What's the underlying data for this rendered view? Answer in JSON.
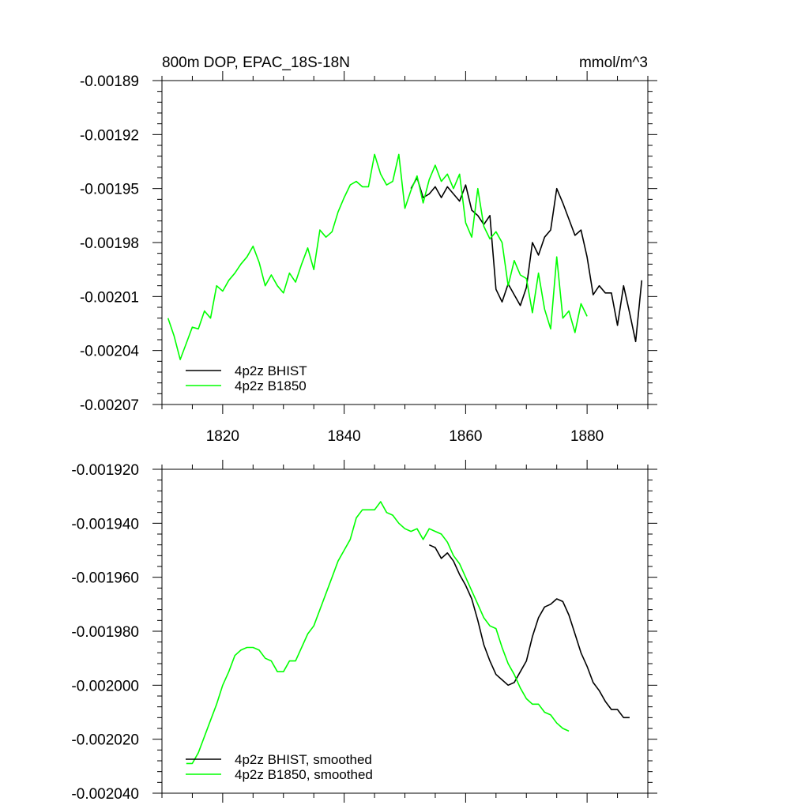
{
  "chart_data": [
    {
      "id": "top",
      "type": "line",
      "title_left": "800m DOP, EPAC_18S-18N",
      "title_right": "mmol/m^3",
      "xlabel": "",
      "ylabel": "",
      "xlim": [
        1810,
        1890
      ],
      "ylim": [
        -0.00207,
        -0.00189
      ],
      "xticks": [
        1820,
        1840,
        1860,
        1880
      ],
      "xtick_labels": [
        "1820",
        "1840",
        "1860",
        "1880"
      ],
      "yticks": [
        -0.00207,
        -0.00204,
        -0.00201,
        -0.00198,
        -0.00195,
        -0.00192,
        -0.00189
      ],
      "ytick_labels": [
        "-0.00207",
        "-0.00204",
        "-0.00201",
        "-0.00198",
        "-0.00195",
        "-0.00192",
        "-0.00189"
      ],
      "legend_position": "bottom-left",
      "series": [
        {
          "name": "4p2z BHIST",
          "color": "#000000",
          "x": [
            1851,
            1852,
            1853,
            1854,
            1855,
            1856,
            1857,
            1858,
            1859,
            1860,
            1861,
            1862,
            1863,
            1864,
            1865,
            1866,
            1867,
            1868,
            1869,
            1870,
            1871,
            1872,
            1873,
            1874,
            1875,
            1876,
            1877,
            1878,
            1879,
            1880,
            1881,
            1882,
            1883,
            1884,
            1885,
            1886,
            1887,
            1888,
            1889
          ],
          "y": [
            -0.00195,
            -0.001944,
            -0.001955,
            -0.001953,
            -0.001949,
            -0.001955,
            -0.001949,
            -0.001953,
            -0.001957,
            -0.001948,
            -0.001962,
            -0.001965,
            -0.00197,
            -0.001965,
            -0.002006,
            -0.002013,
            -0.002003,
            -0.002009,
            -0.002015,
            -0.002005,
            -0.00198,
            -0.001987,
            -0.001977,
            -0.001973,
            -0.00195,
            -0.001958,
            -0.001967,
            -0.001976,
            -0.001973,
            -0.001988,
            -0.002009,
            -0.002004,
            -0.002008,
            -0.002008,
            -0.002026,
            -0.002004,
            -0.002019,
            -0.002035,
            -0.002001
          ]
        },
        {
          "name": "4p2z B1850",
          "color": "#00ff00",
          "x": [
            1811,
            1812,
            1813,
            1814,
            1815,
            1816,
            1817,
            1818,
            1819,
            1820,
            1821,
            1822,
            1823,
            1824,
            1825,
            1826,
            1827,
            1828,
            1829,
            1830,
            1831,
            1832,
            1833,
            1834,
            1835,
            1836,
            1837,
            1838,
            1839,
            1840,
            1841,
            1842,
            1843,
            1844,
            1845,
            1846,
            1847,
            1848,
            1849,
            1850,
            1851,
            1852,
            1853,
            1854,
            1855,
            1856,
            1857,
            1858,
            1859,
            1860,
            1861,
            1862,
            1863,
            1864,
            1865,
            1866,
            1867,
            1868,
            1869,
            1870,
            1871,
            1872,
            1873,
            1874,
            1875,
            1876,
            1877,
            1878,
            1879,
            1880
          ],
          "y": [
            -0.002022,
            -0.002032,
            -0.002045,
            -0.002036,
            -0.002027,
            -0.002028,
            -0.002018,
            -0.002022,
            -0.002004,
            -0.002007,
            -0.002001,
            -0.001997,
            -0.001992,
            -0.001988,
            -0.001982,
            -0.001991,
            -0.002004,
            -0.001998,
            -0.002004,
            -0.002008,
            -0.001997,
            -0.002002,
            -0.001992,
            -0.001983,
            -0.001995,
            -0.001973,
            -0.001977,
            -0.001974,
            -0.001963,
            -0.001955,
            -0.001948,
            -0.001946,
            -0.001949,
            -0.001949,
            -0.001931,
            -0.001942,
            -0.001948,
            -0.001946,
            -0.001931,
            -0.001961,
            -0.001951,
            -0.001943,
            -0.001958,
            -0.001945,
            -0.001937,
            -0.001946,
            -0.001942,
            -0.00195,
            -0.001942,
            -0.001969,
            -0.001977,
            -0.00195,
            -0.001971,
            -0.001978,
            -0.001974,
            -0.00198,
            -0.002004,
            -0.00199,
            -0.001998,
            -0.002,
            -0.002019,
            -0.001997,
            -0.002017,
            -0.002028,
            -0.001988,
            -0.002022,
            -0.002018,
            -0.00203,
            -0.002014,
            -0.002021
          ]
        }
      ]
    },
    {
      "id": "bottom",
      "type": "line",
      "title_left": "",
      "title_right": "",
      "xlabel": "",
      "ylabel": "",
      "xlim": [
        1810,
        1890
      ],
      "ylim": [
        -0.00204,
        -0.00192
      ],
      "xticks": [
        1820,
        1840,
        1860,
        1880
      ],
      "xtick_labels": [],
      "yticks": [
        -0.00204,
        -0.00202,
        -0.002,
        -0.00198,
        -0.00196,
        -0.00194,
        -0.00192
      ],
      "ytick_labels": [
        "-0.002040",
        "-0.002020",
        "-0.002000",
        "-0.001980",
        "-0.001960",
        "-0.001940",
        "-0.001920"
      ],
      "legend_position": "bottom-left",
      "series": [
        {
          "name": "4p2z BHIST, smoothed",
          "color": "#000000",
          "x": [
            1854,
            1855,
            1856,
            1857,
            1858,
            1859,
            1860,
            1861,
            1862,
            1863,
            1864,
            1865,
            1866,
            1867,
            1868,
            1869,
            1870,
            1871,
            1872,
            1873,
            1874,
            1875,
            1876,
            1877,
            1878,
            1879,
            1880,
            1881,
            1882,
            1883,
            1884,
            1885,
            1886,
            1887
          ],
          "y": [
            -0.001948,
            -0.001949,
            -0.001953,
            -0.001951,
            -0.001954,
            -0.001959,
            -0.001963,
            -0.001968,
            -0.001976,
            -0.001985,
            -0.001991,
            -0.001996,
            -0.001998,
            -0.002,
            -0.001999,
            -0.001995,
            -0.001991,
            -0.001982,
            -0.001975,
            -0.001971,
            -0.00197,
            -0.001968,
            -0.001969,
            -0.001974,
            -0.001981,
            -0.001988,
            -0.001993,
            -0.001999,
            -0.002002,
            -0.002006,
            -0.002009,
            -0.002009,
            -0.002012,
            -0.002012
          ]
        },
        {
          "name": "4p2z B1850, smoothed",
          "color": "#00ff00",
          "x": [
            1814,
            1815,
            1816,
            1817,
            1818,
            1819,
            1820,
            1821,
            1822,
            1823,
            1824,
            1825,
            1826,
            1827,
            1828,
            1829,
            1830,
            1831,
            1832,
            1833,
            1834,
            1835,
            1836,
            1837,
            1838,
            1839,
            1840,
            1841,
            1842,
            1843,
            1844,
            1845,
            1846,
            1847,
            1848,
            1849,
            1850,
            1851,
            1852,
            1853,
            1854,
            1855,
            1856,
            1857,
            1858,
            1859,
            1860,
            1861,
            1862,
            1863,
            1864,
            1865,
            1866,
            1867,
            1868,
            1869,
            1870,
            1871,
            1872,
            1873,
            1874,
            1875,
            1876,
            1877
          ],
          "y": [
            -0.002029,
            -0.002029,
            -0.002025,
            -0.002019,
            -0.002013,
            -0.002007,
            -0.002,
            -0.001995,
            -0.001989,
            -0.001987,
            -0.001986,
            -0.001986,
            -0.001987,
            -0.00199,
            -0.001991,
            -0.001995,
            -0.001995,
            -0.001991,
            -0.001991,
            -0.001986,
            -0.001981,
            -0.001978,
            -0.001972,
            -0.001966,
            -0.00196,
            -0.001954,
            -0.00195,
            -0.001946,
            -0.001938,
            -0.001935,
            -0.001935,
            -0.001935,
            -0.001932,
            -0.001936,
            -0.001937,
            -0.00194,
            -0.001942,
            -0.001943,
            -0.001942,
            -0.001946,
            -0.001942,
            -0.001943,
            -0.001944,
            -0.001947,
            -0.001952,
            -0.001955,
            -0.00196,
            -0.001965,
            -0.00197,
            -0.001975,
            -0.001978,
            -0.001979,
            -0.001986,
            -0.001992,
            -0.001996,
            -0.002001,
            -0.002005,
            -0.002007,
            -0.002007,
            -0.00201,
            -0.002011,
            -0.002014,
            -0.002016,
            -0.002017
          ]
        }
      ]
    }
  ]
}
